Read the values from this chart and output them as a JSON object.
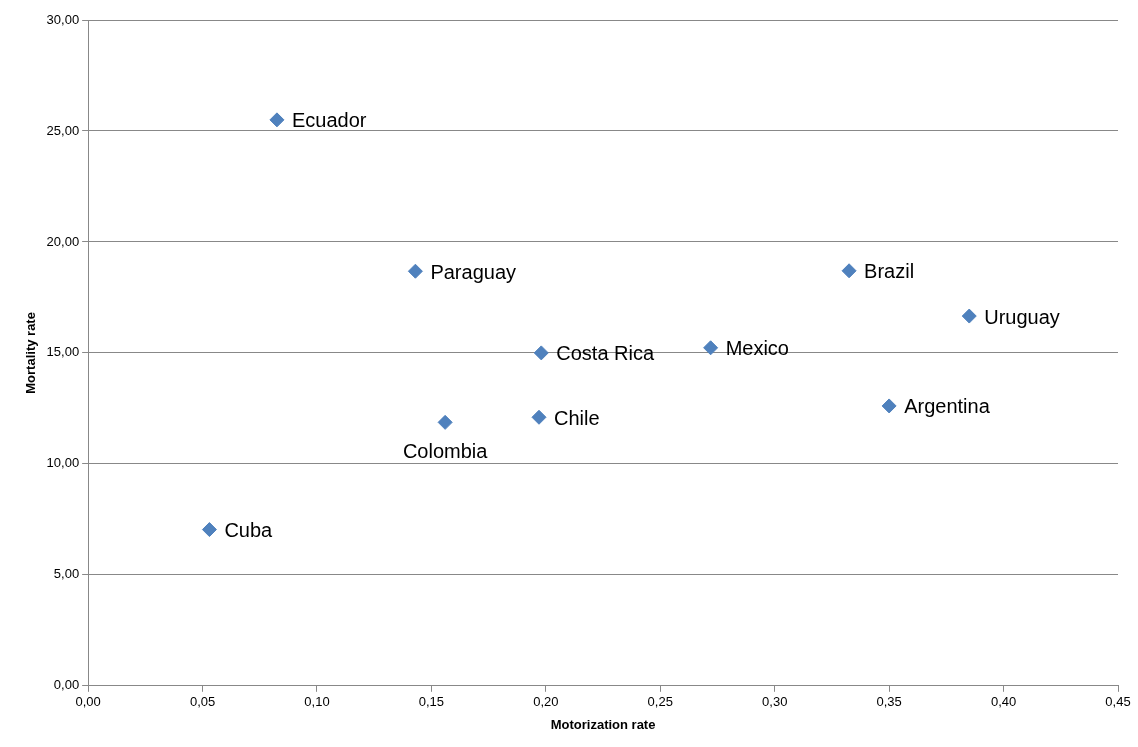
{
  "chart_data": {
    "type": "scatter",
    "xlabel": "Motorization rate",
    "ylabel": "Mortality rate",
    "marker": "diamond",
    "grid": "y",
    "legend": false,
    "series": [
      {
        "color": "#4f81bd",
        "x": [
          0.0825,
          0.143,
          0.3325,
          0.385,
          0.198,
          0.272,
          0.35,
          0.197,
          0.156,
          0.053
        ],
        "values": [
          25.5,
          18.68,
          18.7,
          16.66,
          15.0,
          15.23,
          12.61,
          12.1,
          11.87,
          7.04
        ]
      }
    ],
    "annotations": [
      {
        "text": "Ecuador",
        "x": 0.0825,
        "y": 25.5
      },
      {
        "text": "Paraguay",
        "x": 0.143,
        "y": 18.68
      },
      {
        "text": "Brazil",
        "x": 0.3325,
        "y": 18.7
      },
      {
        "text": "Uruguay",
        "x": 0.385,
        "y": 16.66
      },
      {
        "text": "Costa Rica",
        "x": 0.198,
        "y": 15.0
      },
      {
        "text": "Mexico",
        "x": 0.272,
        "y": 15.23
      },
      {
        "text": "Argentina",
        "x": 0.35,
        "y": 12.61
      },
      {
        "text": "Chile",
        "x": 0.197,
        "y": 12.1
      },
      {
        "text": "Colombia",
        "x": 0.156,
        "y": 11.87
      },
      {
        "text": "Cuba",
        "x": 0.053,
        "y": 7.04
      }
    ],
    "xlim": [
      0,
      0.45
    ],
    "xticks": [
      {
        "value": 0,
        "label": "0,00"
      },
      {
        "value": 0.05,
        "label": "0,05"
      },
      {
        "value": 0.1,
        "label": "0,10"
      },
      {
        "value": 0.15,
        "label": "0,15"
      },
      {
        "value": 0.2,
        "label": "0,20"
      },
      {
        "value": 0.25,
        "label": "0,25"
      },
      {
        "value": 0.3,
        "label": "0,30"
      },
      {
        "value": 0.35,
        "label": "0,35"
      },
      {
        "value": 0.4,
        "label": "0,40"
      },
      {
        "value": 0.45,
        "label": "0,45"
      }
    ],
    "ylim": [
      0,
      30
    ],
    "yticks": [
      {
        "value": 0,
        "label": "0,00"
      },
      {
        "value": 5,
        "label": "5,00"
      },
      {
        "value": 10,
        "label": "10,00"
      },
      {
        "value": 15,
        "label": "15,00"
      },
      {
        "value": 20,
        "label": "20,00"
      },
      {
        "value": 25,
        "label": "25,00"
      },
      {
        "value": 30,
        "label": "30,00"
      }
    ]
  }
}
